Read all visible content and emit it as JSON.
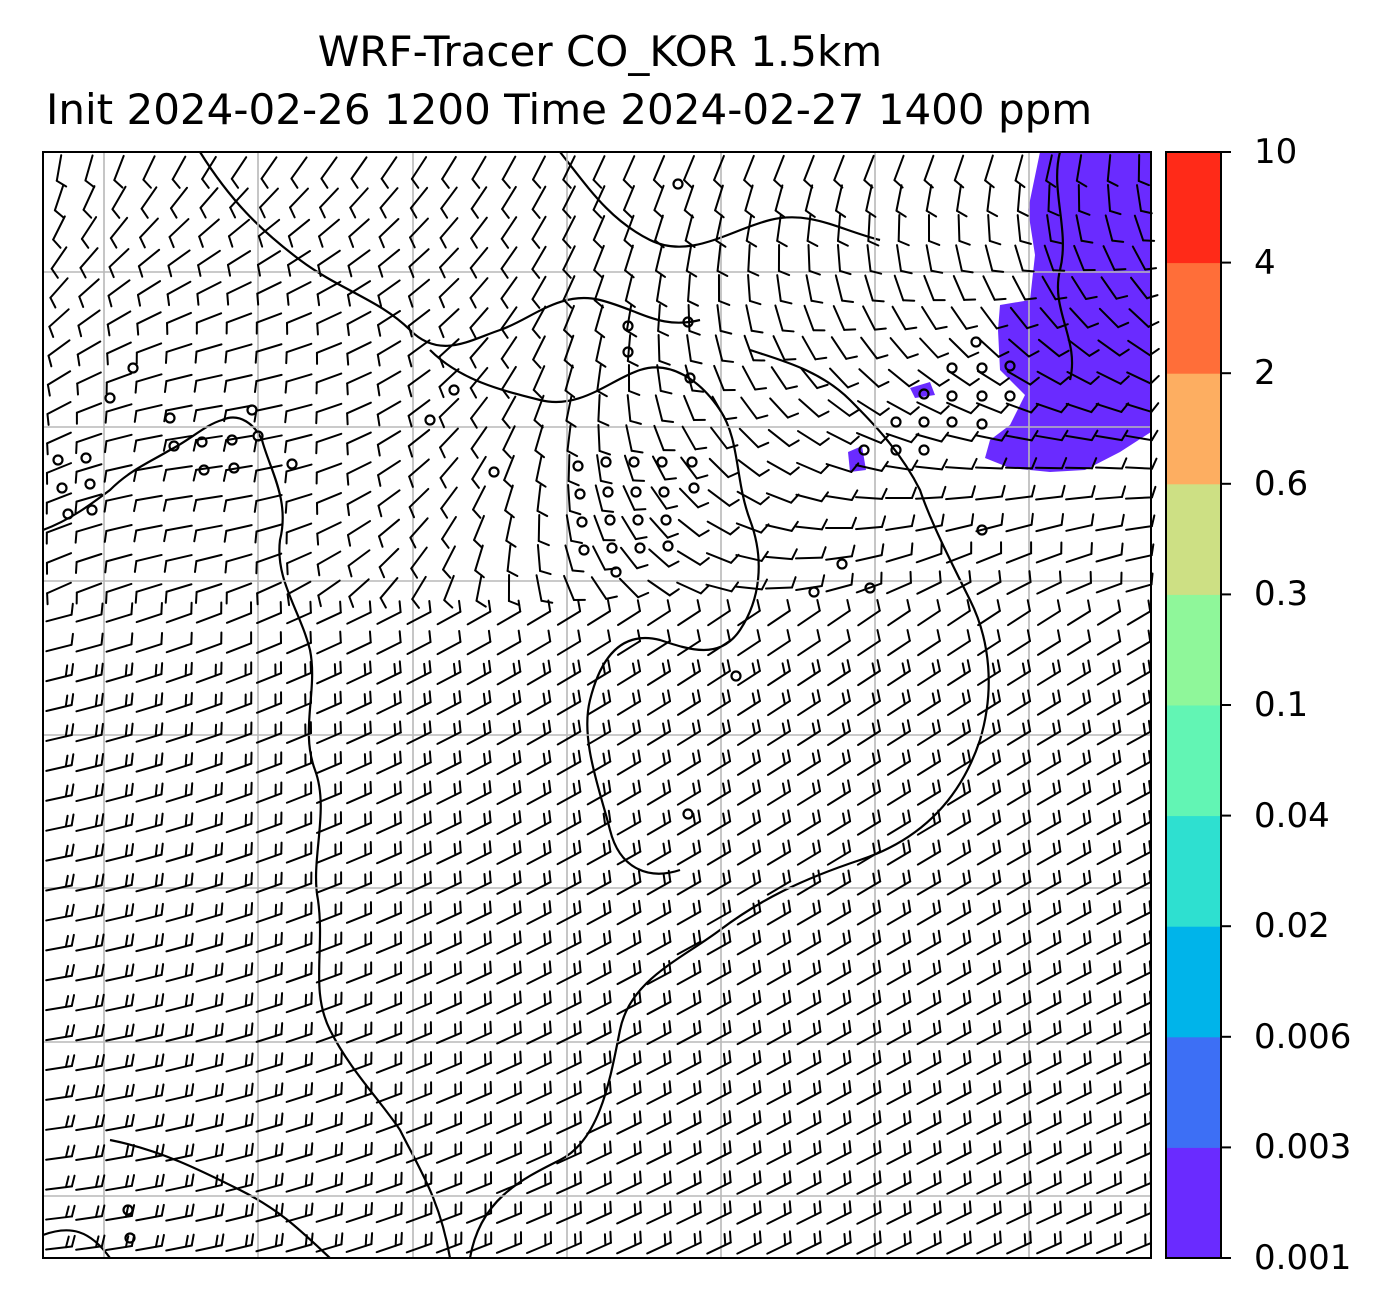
{
  "title": {
    "line1": "WRF-Tracer CO_KOR 1.5km",
    "line2": "Init 2024-02-26 1200 Time 2024-02-27 1400 ppm"
  },
  "colorbar": {
    "levels": [
      {
        "label": "0.001",
        "color": "#6a2bff"
      },
      {
        "label": "0.003",
        "color": "#3d6ff5"
      },
      {
        "label": "0.006",
        "color": "#00b4ea"
      },
      {
        "label": "0.02",
        "color": "#2ee0d0"
      },
      {
        "label": "0.04",
        "color": "#62f5b4"
      },
      {
        "label": "0.1",
        "color": "#8ff79a"
      },
      {
        "label": "0.3",
        "color": "#cde084"
      },
      {
        "label": "0.6",
        "color": "#fdae61"
      },
      {
        "label": "2",
        "color": "#ff6e39"
      },
      {
        "label": "4",
        "color": "#ff2a18"
      },
      {
        "label": "10",
        "color": null
      }
    ]
  },
  "overlay": {
    "tracer_fill_color": "#6a2bff",
    "gridline_color": "#b8b8b8",
    "wind_barbs": "black"
  }
}
